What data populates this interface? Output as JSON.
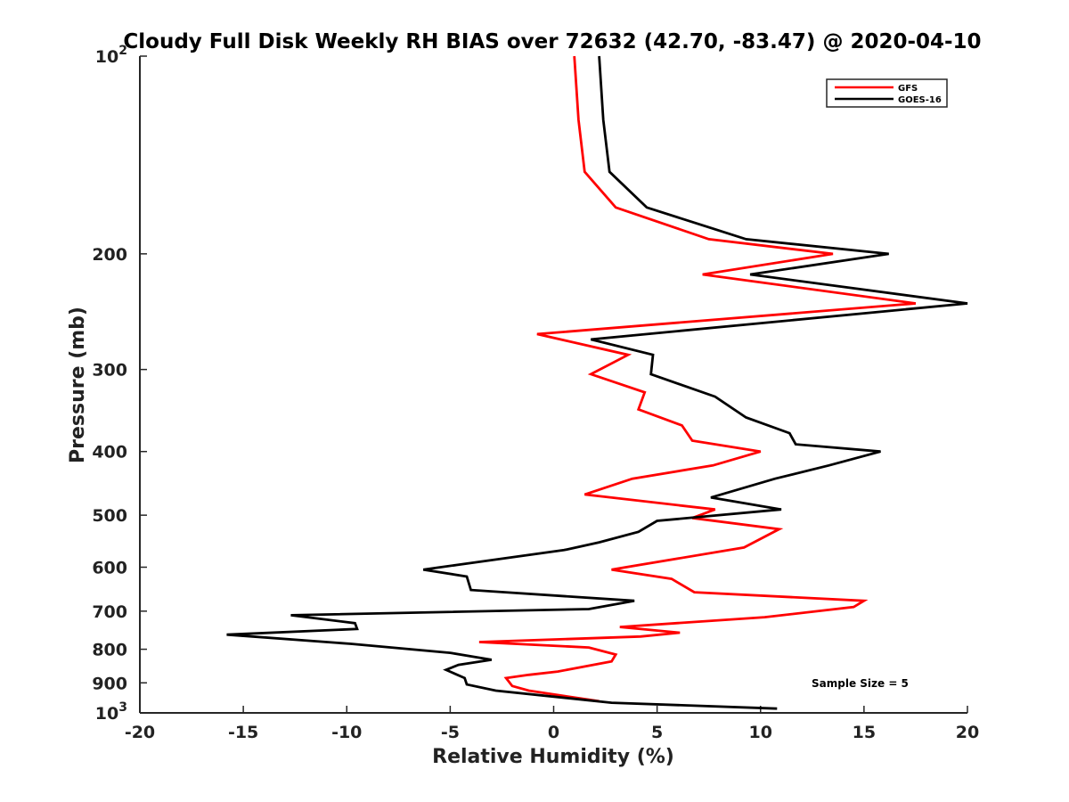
{
  "chart_data": {
    "type": "line",
    "title": "Cloudy Full Disk Weekly RH BIAS over 72632 (42.70, -83.47) @ 2020-04-10",
    "xlabel": "Relative Humidity (%)",
    "ylabel": "Pressure (mb)",
    "xlim": [
      -20,
      20
    ],
    "ylim": [
      1000,
      100
    ],
    "yscale": "log",
    "grid": false,
    "legend_position": "top-right",
    "annotation": "Sample Size = 5",
    "x_ticks": [
      "-20",
      "-15",
      "-10",
      "-5",
      "0",
      "5",
      "10",
      "15",
      "20"
    ],
    "y_ticks": [
      {
        "value": 100,
        "base": "10",
        "exp": "2"
      },
      {
        "value": 200,
        "base": "200",
        "exp": ""
      },
      {
        "value": 300,
        "base": "300",
        "exp": ""
      },
      {
        "value": 400,
        "base": "400",
        "exp": ""
      },
      {
        "value": 500,
        "base": "500",
        "exp": ""
      },
      {
        "value": 600,
        "base": "600",
        "exp": ""
      },
      {
        "value": 700,
        "base": "700",
        "exp": ""
      },
      {
        "value": 800,
        "base": "800",
        "exp": ""
      },
      {
        "value": 900,
        "base": "900",
        "exp": ""
      },
      {
        "value": 1000,
        "base": "10",
        "exp": "3"
      }
    ],
    "series": [
      {
        "name": "GFS",
        "color": "#ff0000",
        "points": [
          [
            1.0,
            100
          ],
          [
            1.2,
            125
          ],
          [
            1.5,
            150
          ],
          [
            3.0,
            170
          ],
          [
            7.5,
            190
          ],
          [
            13.5,
            200
          ],
          [
            7.2,
            215
          ],
          [
            17.5,
            238
          ],
          [
            -0.8,
            265
          ],
          [
            3.6,
            285
          ],
          [
            1.8,
            305
          ],
          [
            4.4,
            325
          ],
          [
            4.1,
            345
          ],
          [
            6.2,
            365
          ],
          [
            6.7,
            385
          ],
          [
            10.0,
            400
          ],
          [
            7.7,
            420
          ],
          [
            3.8,
            440
          ],
          [
            1.5,
            465
          ],
          [
            7.8,
            490
          ],
          [
            6.7,
            505
          ],
          [
            10.9,
            525
          ],
          [
            9.2,
            560
          ],
          [
            2.8,
            605
          ],
          [
            5.7,
            625
          ],
          [
            6.8,
            655
          ],
          [
            15.0,
            675
          ],
          [
            14.5,
            690
          ],
          [
            10.2,
            715
          ],
          [
            3.2,
            740
          ],
          [
            6.1,
            755
          ],
          [
            4.2,
            765
          ],
          [
            -3.6,
            780
          ],
          [
            1.7,
            795
          ],
          [
            3.0,
            815
          ],
          [
            2.8,
            835
          ],
          [
            0.2,
            865
          ],
          [
            -1.2,
            875
          ],
          [
            -2.3,
            885
          ],
          [
            -2.0,
            910
          ],
          [
            -1.2,
            925
          ],
          [
            2.2,
            960
          ]
        ]
      },
      {
        "name": "GOES-16",
        "color": "#000000",
        "points": [
          [
            2.2,
            100
          ],
          [
            2.4,
            125
          ],
          [
            2.7,
            150
          ],
          [
            4.5,
            170
          ],
          [
            9.3,
            190
          ],
          [
            16.2,
            200
          ],
          [
            9.5,
            215
          ],
          [
            20.0,
            238
          ],
          [
            1.8,
            270
          ],
          [
            4.8,
            285
          ],
          [
            4.7,
            305
          ],
          [
            7.8,
            330
          ],
          [
            9.3,
            355
          ],
          [
            11.4,
            375
          ],
          [
            11.7,
            390
          ],
          [
            15.8,
            400
          ],
          [
            13.3,
            420
          ],
          [
            10.7,
            440
          ],
          [
            7.6,
            470
          ],
          [
            11.0,
            490
          ],
          [
            5.0,
            510
          ],
          [
            4.1,
            530
          ],
          [
            2.2,
            550
          ],
          [
            0.5,
            565
          ],
          [
            -6.3,
            605
          ],
          [
            -4.2,
            620
          ],
          [
            -4.0,
            650
          ],
          [
            3.9,
            675
          ],
          [
            1.7,
            695
          ],
          [
            -12.7,
            710
          ],
          [
            -9.6,
            730
          ],
          [
            -9.5,
            745
          ],
          [
            -15.8,
            760
          ],
          [
            -9.8,
            785
          ],
          [
            -5.0,
            810
          ],
          [
            -3.0,
            830
          ],
          [
            -4.6,
            845
          ],
          [
            -5.2,
            860
          ],
          [
            -4.3,
            885
          ],
          [
            -4.2,
            905
          ],
          [
            -2.8,
            925
          ],
          [
            2.8,
            965
          ],
          [
            10.8,
            985
          ]
        ]
      }
    ]
  }
}
